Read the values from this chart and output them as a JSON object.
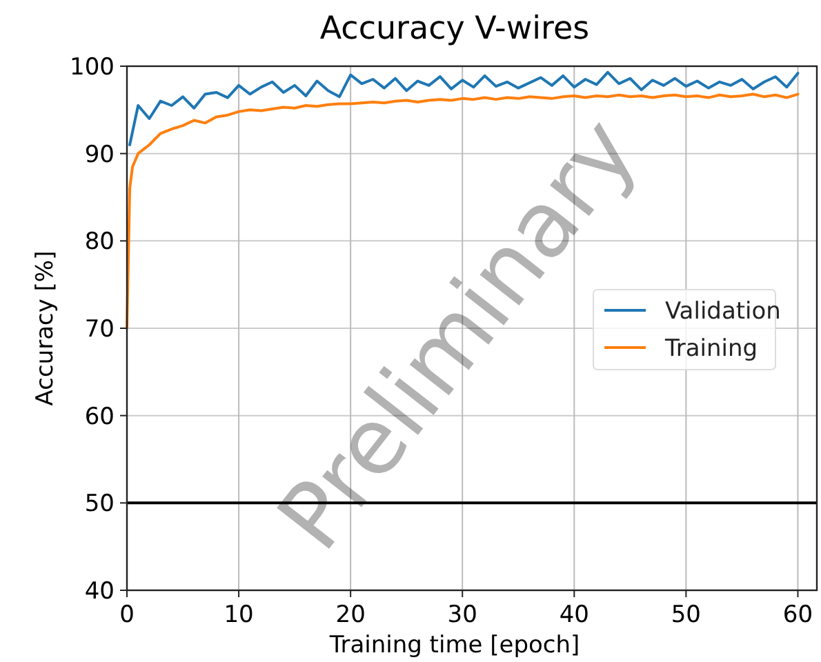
{
  "chart_data": {
    "type": "line",
    "title": "Accuracy V-wires",
    "xlabel": "Training time [epoch]",
    "ylabel": "Accuracy [%]",
    "x": [
      0,
      0.25,
      0.5,
      1,
      2,
      3,
      4,
      5,
      6,
      7,
      8,
      9,
      10,
      11,
      12,
      13,
      14,
      15,
      16,
      17,
      18,
      19,
      20,
      21,
      22,
      23,
      24,
      25,
      26,
      27,
      28,
      29,
      30,
      31,
      32,
      33,
      34,
      35,
      36,
      37,
      38,
      39,
      40,
      41,
      42,
      43,
      44,
      45,
      46,
      47,
      48,
      49,
      50,
      51,
      52,
      53,
      54,
      55,
      56,
      57,
      58,
      59,
      60
    ],
    "series": [
      {
        "name": "Validation",
        "color": "#1f77b4",
        "values": [
          null,
          91,
          92.5,
          95.5,
          94,
          96,
          95.5,
          96.5,
          95.2,
          96.8,
          97,
          96.4,
          97.8,
          96.8,
          97.6,
          98.2,
          97,
          97.8,
          96.6,
          98.3,
          97.2,
          96.5,
          99,
          98,
          98.5,
          97.5,
          98.6,
          97.2,
          98.3,
          97.8,
          98.8,
          97.4,
          98.4,
          97.6,
          98.9,
          97.7,
          98.2,
          97.5,
          98.1,
          98.7,
          97.8,
          98.9,
          97.6,
          98.5,
          97.9,
          99.3,
          98,
          98.6,
          97.3,
          98.4,
          97.8,
          98.6,
          97.7,
          98.3,
          97.5,
          98.2,
          97.8,
          98.5,
          97.4,
          98.2,
          98.8,
          97.6,
          99.2
        ]
      },
      {
        "name": "Training",
        "color": "#ff7f0e",
        "values": [
          70,
          86,
          88.5,
          90,
          91,
          92.3,
          92.8,
          93.2,
          93.8,
          93.5,
          94.2,
          94.4,
          94.8,
          95,
          94.9,
          95.1,
          95.3,
          95.2,
          95.5,
          95.4,
          95.6,
          95.7,
          95.7,
          95.8,
          95.9,
          95.8,
          96,
          96.1,
          95.9,
          96.1,
          96.2,
          96.1,
          96.3,
          96.2,
          96.4,
          96.2,
          96.4,
          96.3,
          96.5,
          96.4,
          96.3,
          96.5,
          96.6,
          96.4,
          96.6,
          96.5,
          96.7,
          96.5,
          96.6,
          96.4,
          96.6,
          96.7,
          96.5,
          96.6,
          96.4,
          96.7,
          96.5,
          96.6,
          96.8,
          96.5,
          96.7,
          96.4,
          96.8
        ]
      }
    ],
    "xlim": [
      0,
      61.7
    ],
    "ylim": [
      40,
      100
    ],
    "xticks": [
      0,
      10,
      20,
      30,
      40,
      50,
      60
    ],
    "yticks": [
      40,
      50,
      60,
      70,
      80,
      90,
      100
    ],
    "ref_lines": [
      {
        "axis": "y",
        "value": 50,
        "color": "#000000"
      }
    ],
    "annotations": [
      "Preliminary"
    ],
    "grid": true,
    "legend": "right",
    "line_style": "solid",
    "marker": "none"
  }
}
